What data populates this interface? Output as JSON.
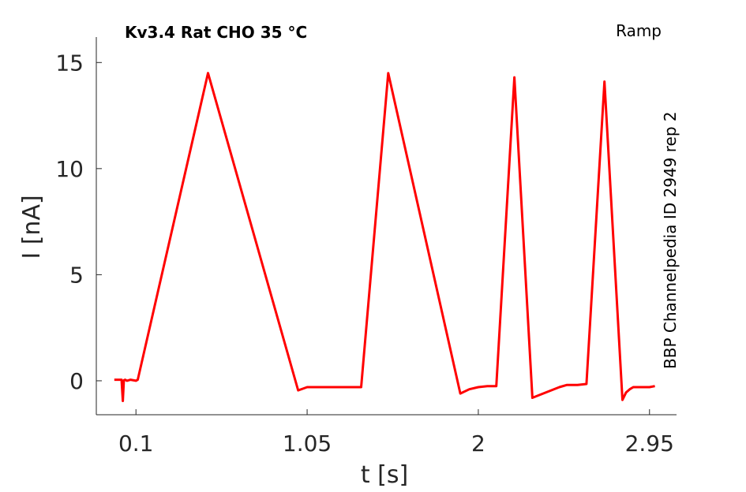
{
  "chart_data": {
    "type": "line",
    "title": "Kv3.4  Rat  CHO  35 °C",
    "subtitle": "Ramp",
    "annotation": "BBP Channelpedia ID 2949 rep 2",
    "xlabel": "t [s]",
    "ylabel": "I [nA]",
    "xlim": [
      -0.12,
      3.1
    ],
    "ylim": [
      -1.6,
      16.2
    ],
    "xticks": [
      0.1,
      1.05,
      2,
      2.95
    ],
    "xtick_labels": [
      "0.1",
      "1.05",
      "2",
      "2.95"
    ],
    "yticks": [
      0,
      5,
      10,
      15
    ],
    "ytick_labels": [
      "0",
      "5",
      "10",
      "15"
    ],
    "grid": false,
    "series": [
      {
        "color": "#ff0000",
        "x": [
          -0.02,
          0.02,
          0.027,
          0.033,
          0.04,
          0.05,
          0.07,
          0.1,
          0.11,
          0.5,
          1.0,
          1.0,
          1.05,
          1.2,
          1.3,
          1.35,
          1.5,
          1.9,
          1.95,
          2.0,
          2.05,
          2.1,
          2.2,
          2.3,
          2.45,
          2.49,
          2.55,
          2.6,
          2.7,
          2.8,
          2.82,
          2.84,
          2.86,
          2.9,
          2.95,
          2.98
        ],
        "y": [
          0.05,
          0.05,
          -0.95,
          0.02,
          0.05,
          0.0,
          0.05,
          0.0,
          0.05,
          14.5,
          -0.45,
          -0.45,
          -0.3,
          -0.3,
          -0.3,
          -0.3,
          14.5,
          -0.6,
          -0.4,
          -0.3,
          -0.25,
          -0.25,
          14.3,
          -0.8,
          -0.3,
          -0.2,
          -0.2,
          -0.15,
          14.1,
          -0.9,
          -0.55,
          -0.4,
          -0.3,
          -0.3,
          -0.3,
          -0.25
        ]
      }
    ]
  }
}
